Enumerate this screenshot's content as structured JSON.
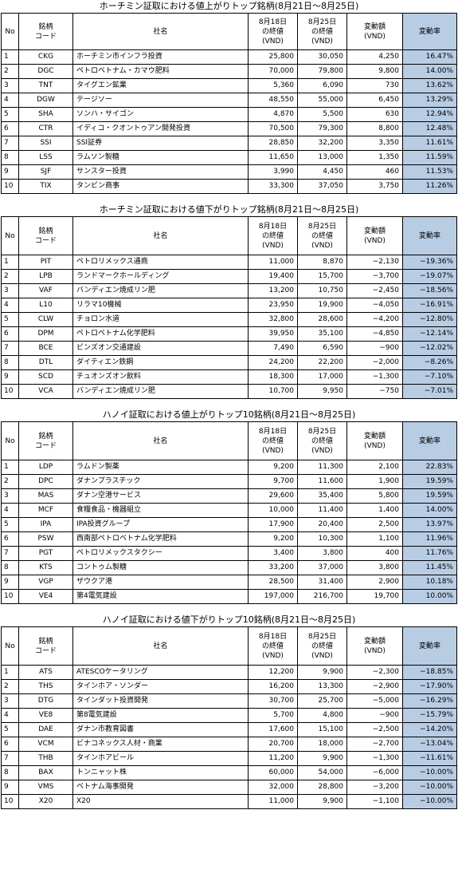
{
  "colors": {
    "rate_fill": "#b8cce4"
  },
  "headers": {
    "no": "No",
    "code": "銘柄\nコード",
    "name": "社名",
    "close1": "8月18日\nの終値\n(VND)",
    "close2": "8月25日\nの終値\n(VND)",
    "change": "変動額\n(VND)",
    "rate": "変動率"
  },
  "tables": [
    {
      "title": "ホーチミン証取における値上がりトップ銘柄(8月21日～8月25日)",
      "rows": [
        {
          "no": "1",
          "code": "CKG",
          "name": "ホーチミン市インフラ投資",
          "c1": "25,800",
          "c2": "30,050",
          "chg": "4,250",
          "rate": "16.47%"
        },
        {
          "no": "2",
          "code": "DGC",
          "name": "ペトロベトナム・カマウ肥料",
          "c1": "70,000",
          "c2": "79,800",
          "chg": "9,800",
          "rate": "14.00%"
        },
        {
          "no": "3",
          "code": "TNT",
          "name": "タイグエン鉱業",
          "c1": "5,360",
          "c2": "6,090",
          "chg": "730",
          "rate": "13.62%"
        },
        {
          "no": "4",
          "code": "DGW",
          "name": "テージソー",
          "c1": "48,550",
          "c2": "55,000",
          "chg": "6,450",
          "rate": "13.29%"
        },
        {
          "no": "5",
          "code": "SHA",
          "name": "ソンハ・サイゴン",
          "c1": "4,870",
          "c2": "5,500",
          "chg": "630",
          "rate": "12.94%"
        },
        {
          "no": "6",
          "code": "CTR",
          "name": "イディコ・クオントゥアン開発投資",
          "c1": "70,500",
          "c2": "79,300",
          "chg": "8,800",
          "rate": "12.48%"
        },
        {
          "no": "7",
          "code": "SSI",
          "name": "SSI証券",
          "c1": "28,850",
          "c2": "32,200",
          "chg": "3,350",
          "rate": "11.61%"
        },
        {
          "no": "8",
          "code": "LSS",
          "name": "ラムソン製糖",
          "c1": "11,650",
          "c2": "13,000",
          "chg": "1,350",
          "rate": "11.59%"
        },
        {
          "no": "9",
          "code": "SJF",
          "name": "サンスター投資",
          "c1": "3,990",
          "c2": "4,450",
          "chg": "460",
          "rate": "11.53%"
        },
        {
          "no": "10",
          "code": "TIX",
          "name": "タンビン商事",
          "c1": "33,300",
          "c2": "37,050",
          "chg": "3,750",
          "rate": "11.26%"
        }
      ]
    },
    {
      "title": "ホーチミン証取における値下がりトップ銘柄(8月21日～8月25日)",
      "rows": [
        {
          "no": "1",
          "code": "PIT",
          "name": "ペトロリメックス通商",
          "c1": "11,000",
          "c2": "8,870",
          "chg": "−2,130",
          "rate": "−19.36%"
        },
        {
          "no": "2",
          "code": "LPB",
          "name": "ランドマークホールディング",
          "c1": "19,400",
          "c2": "15,700",
          "chg": "−3,700",
          "rate": "−19.07%"
        },
        {
          "no": "3",
          "code": "VAF",
          "name": "バンディエン焼成リン肥",
          "c1": "13,200",
          "c2": "10,750",
          "chg": "−2,450",
          "rate": "−18.56%"
        },
        {
          "no": "4",
          "code": "L10",
          "name": "リラマ10機械",
          "c1": "23,950",
          "c2": "19,900",
          "chg": "−4,050",
          "rate": "−16.91%"
        },
        {
          "no": "5",
          "code": "CLW",
          "name": "チョロン水道",
          "c1": "32,800",
          "c2": "28,600",
          "chg": "−4,200",
          "rate": "−12.80%"
        },
        {
          "no": "6",
          "code": "DPM",
          "name": "ペトロベトナム化学肥料",
          "c1": "39,950",
          "c2": "35,100",
          "chg": "−4,850",
          "rate": "−12.14%"
        },
        {
          "no": "7",
          "code": "BCE",
          "name": "ビンズオン交通建設",
          "c1": "7,490",
          "c2": "6,590",
          "chg": "−900",
          "rate": "−12.02%"
        },
        {
          "no": "8",
          "code": "DTL",
          "name": "ダイティエン鉄鋼",
          "c1": "24,200",
          "c2": "22,200",
          "chg": "−2,000",
          "rate": "−8.26%"
        },
        {
          "no": "9",
          "code": "SCD",
          "name": "チュオンズオン飲料",
          "c1": "18,300",
          "c2": "17,000",
          "chg": "−1,300",
          "rate": "−7.10%"
        },
        {
          "no": "10",
          "code": "VCA",
          "name": "バンディエン焼成リン肥",
          "c1": "10,700",
          "c2": "9,950",
          "chg": "−750",
          "rate": "−7.01%"
        }
      ]
    },
    {
      "title": "ハノイ証取における値上がりトップ10銘柄(8月21日～8月25日)",
      "rows": [
        {
          "no": "1",
          "code": "LDP",
          "name": "ラムドン製薬",
          "c1": "9,200",
          "c2": "11,300",
          "chg": "2,100",
          "rate": "22.83%"
        },
        {
          "no": "2",
          "code": "DPC",
          "name": "ダナンプラスチック",
          "c1": "9,700",
          "c2": "11,600",
          "chg": "1,900",
          "rate": "19.59%"
        },
        {
          "no": "3",
          "code": "MAS",
          "name": "ダナン空港サービス",
          "c1": "29,600",
          "c2": "35,400",
          "chg": "5,800",
          "rate": "19.59%"
        },
        {
          "no": "4",
          "code": "MCF",
          "name": "食糧食品・機器組立",
          "c1": "10,000",
          "c2": "11,400",
          "chg": "1,400",
          "rate": "14.00%"
        },
        {
          "no": "5",
          "code": "IPA",
          "name": "IPA投資グループ",
          "c1": "17,900",
          "c2": "20,400",
          "chg": "2,500",
          "rate": "13.97%"
        },
        {
          "no": "6",
          "code": "PSW",
          "name": "西南部ペトロベトナム化学肥料",
          "c1": "9,200",
          "c2": "10,300",
          "chg": "1,100",
          "rate": "11.96%"
        },
        {
          "no": "7",
          "code": "PGT",
          "name": "ペトロリメックスタクシー",
          "c1": "3,400",
          "c2": "3,800",
          "chg": "400",
          "rate": "11.76%"
        },
        {
          "no": "8",
          "code": "KTS",
          "name": "コントゥム製糖",
          "c1": "33,200",
          "c2": "37,000",
          "chg": "3,800",
          "rate": "11.45%"
        },
        {
          "no": "9",
          "code": "VGP",
          "name": "ザウクア港",
          "c1": "28,500",
          "c2": "31,400",
          "chg": "2,900",
          "rate": "10.18%"
        },
        {
          "no": "10",
          "code": "VE4",
          "name": "第4電気建設",
          "c1": "197,000",
          "c2": "216,700",
          "chg": "19,700",
          "rate": "10.00%"
        }
      ]
    },
    {
      "title": "ハノイ証取における値下がりトップ10銘柄(8月21日～8月25日)",
      "rows": [
        {
          "no": "1",
          "code": "ATS",
          "name": "ATESCOケータリング",
          "c1": "12,200",
          "c2": "9,900",
          "chg": "−2,300",
          "rate": "−18.85%"
        },
        {
          "no": "2",
          "code": "THS",
          "name": "タインホア・ソンダー",
          "c1": "16,200",
          "c2": "13,300",
          "chg": "−2,900",
          "rate": "−17.90%"
        },
        {
          "no": "3",
          "code": "DTG",
          "name": " タインダット投資開発",
          "c1": "30,700",
          "c2": "25,700",
          "chg": "−5,000",
          "rate": "−16.29%"
        },
        {
          "no": "4",
          "code": "VE8",
          "name": "第8電気建設",
          "c1": "5,700",
          "c2": "4,800",
          "chg": "−900",
          "rate": "−15.79%"
        },
        {
          "no": "5",
          "code": "DAE",
          "name": "ダナン市教育図書",
          "c1": "17,600",
          "c2": "15,100",
          "chg": "−2,500",
          "rate": "−14.20%"
        },
        {
          "no": "6",
          "code": "VCM",
          "name": "ビナコネックス人材・商業",
          "c1": "20,700",
          "c2": "18,000",
          "chg": "−2,700",
          "rate": "−13.04%"
        },
        {
          "no": "7",
          "code": "THB",
          "name": "タインホアビール",
          "c1": "11,200",
          "c2": "9,900",
          "chg": "−1,300",
          "rate": "−11.61%"
        },
        {
          "no": "8",
          "code": "BAX",
          "name": "トンニャット株",
          "c1": "60,000",
          "c2": "54,000",
          "chg": "−6,000",
          "rate": "−10.00%"
        },
        {
          "no": "9",
          "code": "VMS",
          "name": "ベトナム海事開発",
          "c1": "32,000",
          "c2": "28,800",
          "chg": "−3,200",
          "rate": "−10.00%"
        },
        {
          "no": "10",
          "code": "X20",
          "name": "X20",
          "c1": "11,000",
          "c2": "9,900",
          "chg": "−1,100",
          "rate": "−10.00%"
        }
      ]
    }
  ]
}
